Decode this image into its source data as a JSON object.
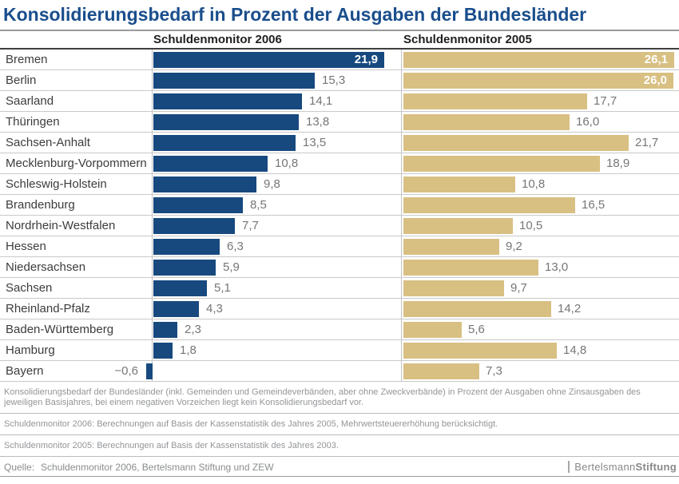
{
  "title": "Konsolidierungsbedarf in Prozent der Ausgaben der Bundesländer",
  "colors": {
    "title_blue": "#1A4E8C",
    "bar_2006_blue": "#17497F",
    "bar_2005_tan": "#D8C083",
    "value_label_gray": "#757678",
    "value_label_inside": "#FFFFFF",
    "state_label": "#3C3C3C",
    "footnote_gray": "#939598"
  },
  "chart_data": {
    "type": "bar",
    "orientation": "horizontal",
    "title": "Konsolidierungsbedarf in Prozent der Ausgaben der Bundesländer",
    "xlabel": "",
    "ylabel": "",
    "value_format": "decimal-comma",
    "legend_position": "column-headers",
    "xlim": [
      0,
      26.5
    ],
    "categories": [
      "Bremen",
      "Berlin",
      "Saarland",
      "Thüringen",
      "Sachsen-Anhalt",
      "Mecklenburg-Vorpommern",
      "Schleswig-Holstein",
      "Brandenburg",
      "Nordrhein-Westfalen",
      "Hessen",
      "Niedersachsen",
      "Sachsen",
      "Rheinland-Pfalz",
      "Baden-Württemberg",
      "Hamburg",
      "Bayern"
    ],
    "series": [
      {
        "name": "Schuldenmonitor 2006",
        "color": "#17497F",
        "values": [
          21.9,
          15.3,
          14.1,
          13.8,
          13.5,
          10.8,
          9.8,
          8.5,
          7.7,
          6.3,
          5.9,
          5.1,
          4.3,
          2.3,
          1.8,
          -0.6
        ],
        "value_labels": [
          "21,9",
          "15,3",
          "14,1",
          "13,8",
          "13,5",
          "10,8",
          "9,8",
          "8,5",
          "7,7",
          "6,3",
          "5,9",
          "5,1",
          "4,3",
          "2,3",
          "1,8",
          "−0,6"
        ]
      },
      {
        "name": "Schuldenmonitor 2005",
        "color": "#D8C083",
        "values": [
          26.1,
          26.0,
          17.7,
          16.0,
          21.7,
          18.9,
          10.8,
          16.5,
          10.5,
          9.2,
          13.0,
          9.7,
          14.2,
          5.6,
          14.8,
          7.3
        ],
        "value_labels": [
          "26,1",
          "26,0",
          "17,7",
          "16,0",
          "21,7",
          "18,9",
          "10,8",
          "16,5",
          "10,5",
          "9,2",
          "13,0",
          "9,7",
          "14,2",
          "5,6",
          "14,8",
          "7,3"
        ]
      }
    ]
  },
  "footnotes": [
    "Konsolidierungsbedarf der Bundesländer (inkl. Gemeinden und Gemeindeverbänden, aber ohne Zweckverbände) in Prozent der Ausgaben ohne Zinsausgaben des jeweiligen Basisjahres, bei einem negativen Vorzeichen liegt kein Konsolidierungsbedarf vor.",
    "Schuldenmonitor 2006: Berechnungen auf Basis der Kassenstatistik des Jahres 2005, Mehrwertsteuererhöhung berücksichtigt.",
    "Schuldenmonitor 2005: Berechnungen auf Basis der Kassenstatistik des Jahres 2003."
  ],
  "source": {
    "label": "Quelle:",
    "text": "Schuldenmonitor 2006,  Bertelsmann Stiftung und ZEW"
  },
  "logo": {
    "part1": "Bertelsmann",
    "part2": "Stiftung"
  }
}
